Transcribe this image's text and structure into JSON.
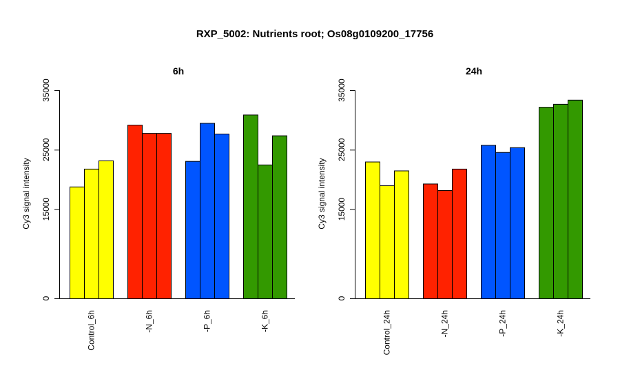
{
  "title": "RXP_5002: Nutrients root; Os08g0109200_17756",
  "chart_data": [
    {
      "type": "bar",
      "title": "6h",
      "ylabel": "Cy3 signal intensity",
      "ylim": [
        0,
        35000
      ],
      "yticks": [
        0,
        15000,
        25000,
        35000
      ],
      "tick_labels": [
        "0",
        "15000",
        "25000",
        "35000"
      ],
      "categories": [
        "Control_6h",
        "-N_6h",
        "-P_6h",
        "-K_6h"
      ],
      "colors": [
        "#ffff00",
        "#ff2200",
        "#0055ff",
        "#339900"
      ],
      "values": [
        [
          18800,
          21800,
          23200
        ],
        [
          29200,
          27800,
          27800
        ],
        [
          23100,
          29500,
          27700
        ],
        [
          30900,
          22500,
          27400
        ]
      ]
    },
    {
      "type": "bar",
      "title": "24h",
      "ylabel": "Cy3 signal intensity",
      "ylim": [
        0,
        35000
      ],
      "yticks": [
        0,
        15000,
        25000,
        35000
      ],
      "tick_labels": [
        "0",
        "15000",
        "25000",
        "35000"
      ],
      "categories": [
        "Control_24h",
        "-N_24h",
        "-P_24h",
        "-K_24h"
      ],
      "colors": [
        "#ffff00",
        "#ff2200",
        "#0055ff",
        "#339900"
      ],
      "values": [
        [
          23000,
          19000,
          21500
        ],
        [
          19300,
          18200,
          21800
        ],
        [
          25800,
          24600,
          25400
        ],
        [
          32200,
          32700,
          33400
        ]
      ]
    }
  ]
}
